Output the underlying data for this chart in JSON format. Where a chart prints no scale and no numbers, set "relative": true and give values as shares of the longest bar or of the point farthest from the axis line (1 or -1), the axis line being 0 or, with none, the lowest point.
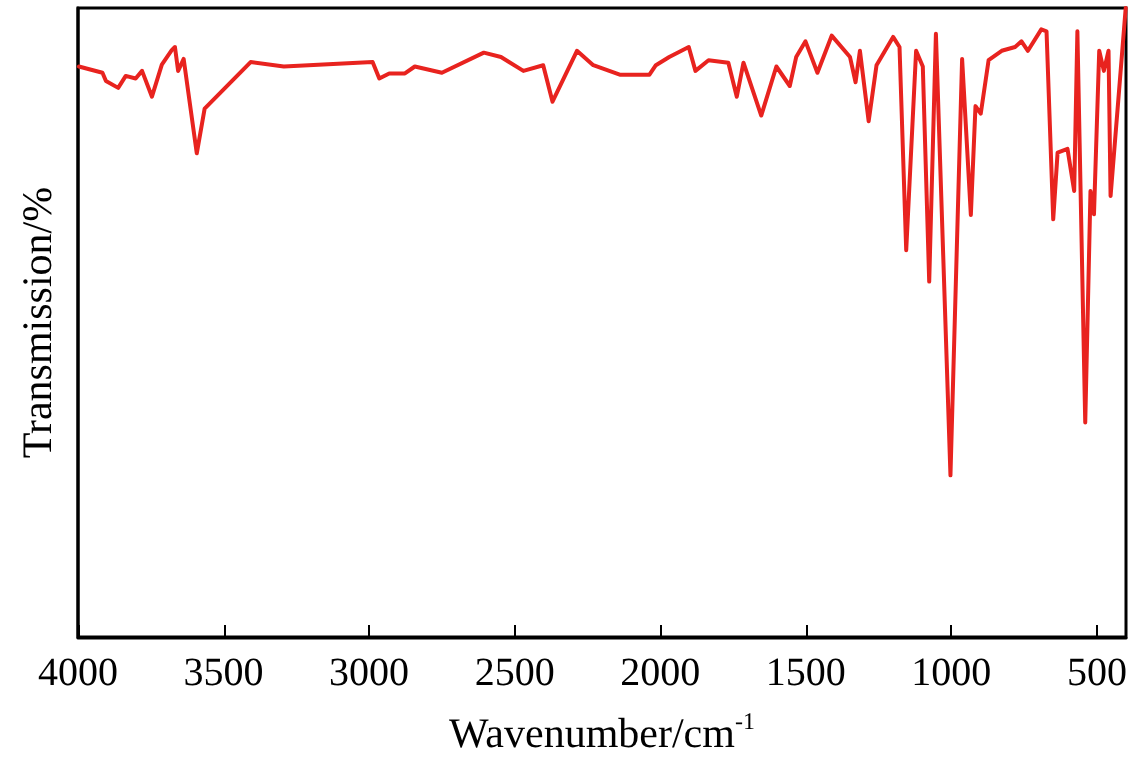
{
  "chart_data": {
    "type": "line",
    "xlabel": "Wavenumber/cm$^{-1}$",
    "ylabel": "Transmission/%",
    "relative": true,
    "tick_labels": "x",
    "marker": "none",
    "line_style": "solid",
    "xlim": [
      4000,
      400
    ],
    "xticks": [
      4000,
      3500,
      3000,
      2500,
      2000,
      1500,
      1000,
      500
    ],
    "series": [
      {
        "color": "#e8231f",
        "x": [
          3997,
          3916,
          3904,
          3862,
          3836,
          3802,
          3780,
          3746,
          3712,
          3678,
          3667,
          3656,
          3637,
          3592,
          3565,
          3407,
          3293,
          2988,
          2965,
          2931,
          2877,
          2843,
          2750,
          2606,
          2547,
          2470,
          2402,
          2370,
          2286,
          2230,
          2139,
          2037,
          2015,
          1969,
          1902,
          1879,
          1834,
          1766,
          1737,
          1714,
          1653,
          1601,
          1555,
          1533,
          1501,
          1460,
          1411,
          1348,
          1329,
          1314,
          1284,
          1257,
          1200,
          1178,
          1155,
          1121,
          1098,
          1076,
          1053,
          1003,
          963,
          933,
          917,
          899,
          872,
          827,
          781,
          759,
          737,
          691,
          673,
          650,
          635,
          601,
          578,
          567,
          540,
          522,
          510,
          492,
          476,
          460,
          453,
          401
        ],
        "values": [
          0.907,
          0.897,
          0.884,
          0.873,
          0.892,
          0.888,
          0.9,
          0.859,
          0.91,
          0.933,
          0.938,
          0.9,
          0.919,
          0.769,
          0.84,
          0.914,
          0.907,
          0.914,
          0.888,
          0.896,
          0.896,
          0.907,
          0.897,
          0.929,
          0.922,
          0.9,
          0.909,
          0.851,
          0.932,
          0.909,
          0.894,
          0.894,
          0.909,
          0.922,
          0.938,
          0.9,
          0.917,
          0.913,
          0.859,
          0.913,
          0.829,
          0.907,
          0.876,
          0.922,
          0.947,
          0.897,
          0.956,
          0.922,
          0.882,
          0.932,
          0.82,
          0.909,
          0.954,
          0.938,
          0.615,
          0.932,
          0.907,
          0.565,
          0.959,
          0.257,
          0.919,
          0.671,
          0.844,
          0.832,
          0.917,
          0.932,
          0.938,
          0.947,
          0.932,
          0.966,
          0.963,
          0.664,
          0.77,
          0.776,
          0.709,
          0.963,
          0.341,
          0.709,
          0.672,
          0.932,
          0.9,
          0.932,
          0.701,
          1.0
        ]
      }
    ]
  }
}
